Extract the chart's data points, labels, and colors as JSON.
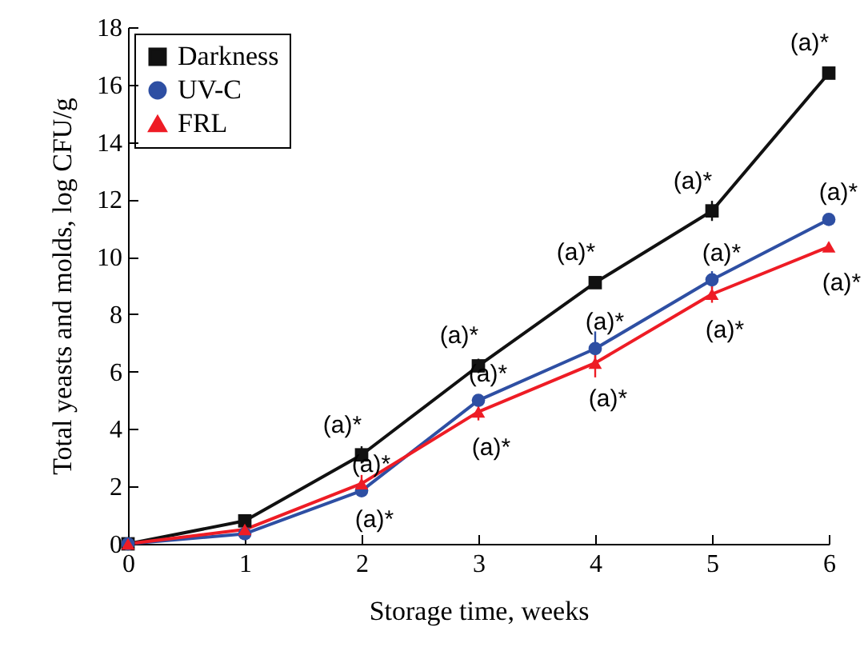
{
  "chart_data": {
    "type": "line",
    "xlabel": "Storage time, weeks",
    "ylabel": "Total yeasts and molds, log CFU/g",
    "x": [
      0,
      1,
      2,
      3,
      4,
      5,
      6
    ],
    "series": [
      {
        "name": "Darkness",
        "color": "#111111",
        "marker": "square",
        "values": [
          0,
          0.8,
          3.1,
          6.2,
          9.1,
          11.6,
          16.4
        ],
        "errors": [
          null,
          0.1,
          0.3,
          0.25,
          0.15,
          0.35,
          0.1
        ]
      },
      {
        "name": "UV-C",
        "color": "#2e4fa3",
        "marker": "circle",
        "values": [
          0,
          0.35,
          1.85,
          5.0,
          6.8,
          9.2,
          11.3
        ],
        "errors": [
          null,
          0.1,
          0.2,
          0.2,
          0.6,
          0.3,
          0.15
        ]
      },
      {
        "name": "FRL",
        "color": "#ee1c25",
        "marker": "triangle",
        "values": [
          0,
          0.5,
          2.1,
          4.6,
          6.3,
          8.7,
          10.35
        ],
        "errors": [
          null,
          0.1,
          0.3,
          0.3,
          0.5,
          0.3,
          0.15
        ]
      }
    ],
    "annotations": [
      {
        "text": "(a)*",
        "x": 2,
        "y": 3.1
      },
      {
        "text": "(a)*",
        "x": 3,
        "y": 6.2
      },
      {
        "text": "(a)*",
        "x": 4,
        "y": 9.1
      },
      {
        "text": "(a)*",
        "x": 5,
        "y": 11.6
      },
      {
        "text": "(a)*",
        "x": 6,
        "y": 16.4
      },
      {
        "text": "(a)*",
        "x": 2,
        "y": 1.85
      },
      {
        "text": "(a)*",
        "x": 3,
        "y": 5.0
      },
      {
        "text": "(a)*",
        "x": 4,
        "y": 6.8
      },
      {
        "text": "(a)*",
        "x": 5,
        "y": 9.2
      },
      {
        "text": "(a)*",
        "x": 6,
        "y": 11.3
      },
      {
        "text": "(a)*",
        "x": 2,
        "y": 2.1
      },
      {
        "text": "(a)*",
        "x": 3,
        "y": 4.6
      },
      {
        "text": "(a)*",
        "x": 4,
        "y": 6.3
      },
      {
        "text": "(a)*",
        "x": 5,
        "y": 8.7
      },
      {
        "text": "(a)*",
        "x": 6,
        "y": 10.35
      }
    ],
    "xlim": [
      0,
      6
    ],
    "xticks": [
      0,
      1,
      2,
      3,
      4,
      5,
      6
    ],
    "ylim": [
      0,
      18
    ],
    "yticks": [
      0,
      2,
      4,
      6,
      8,
      10,
      12,
      14,
      16,
      18
    ],
    "grid": false,
    "legend": "top left",
    "line_style": "solid"
  }
}
